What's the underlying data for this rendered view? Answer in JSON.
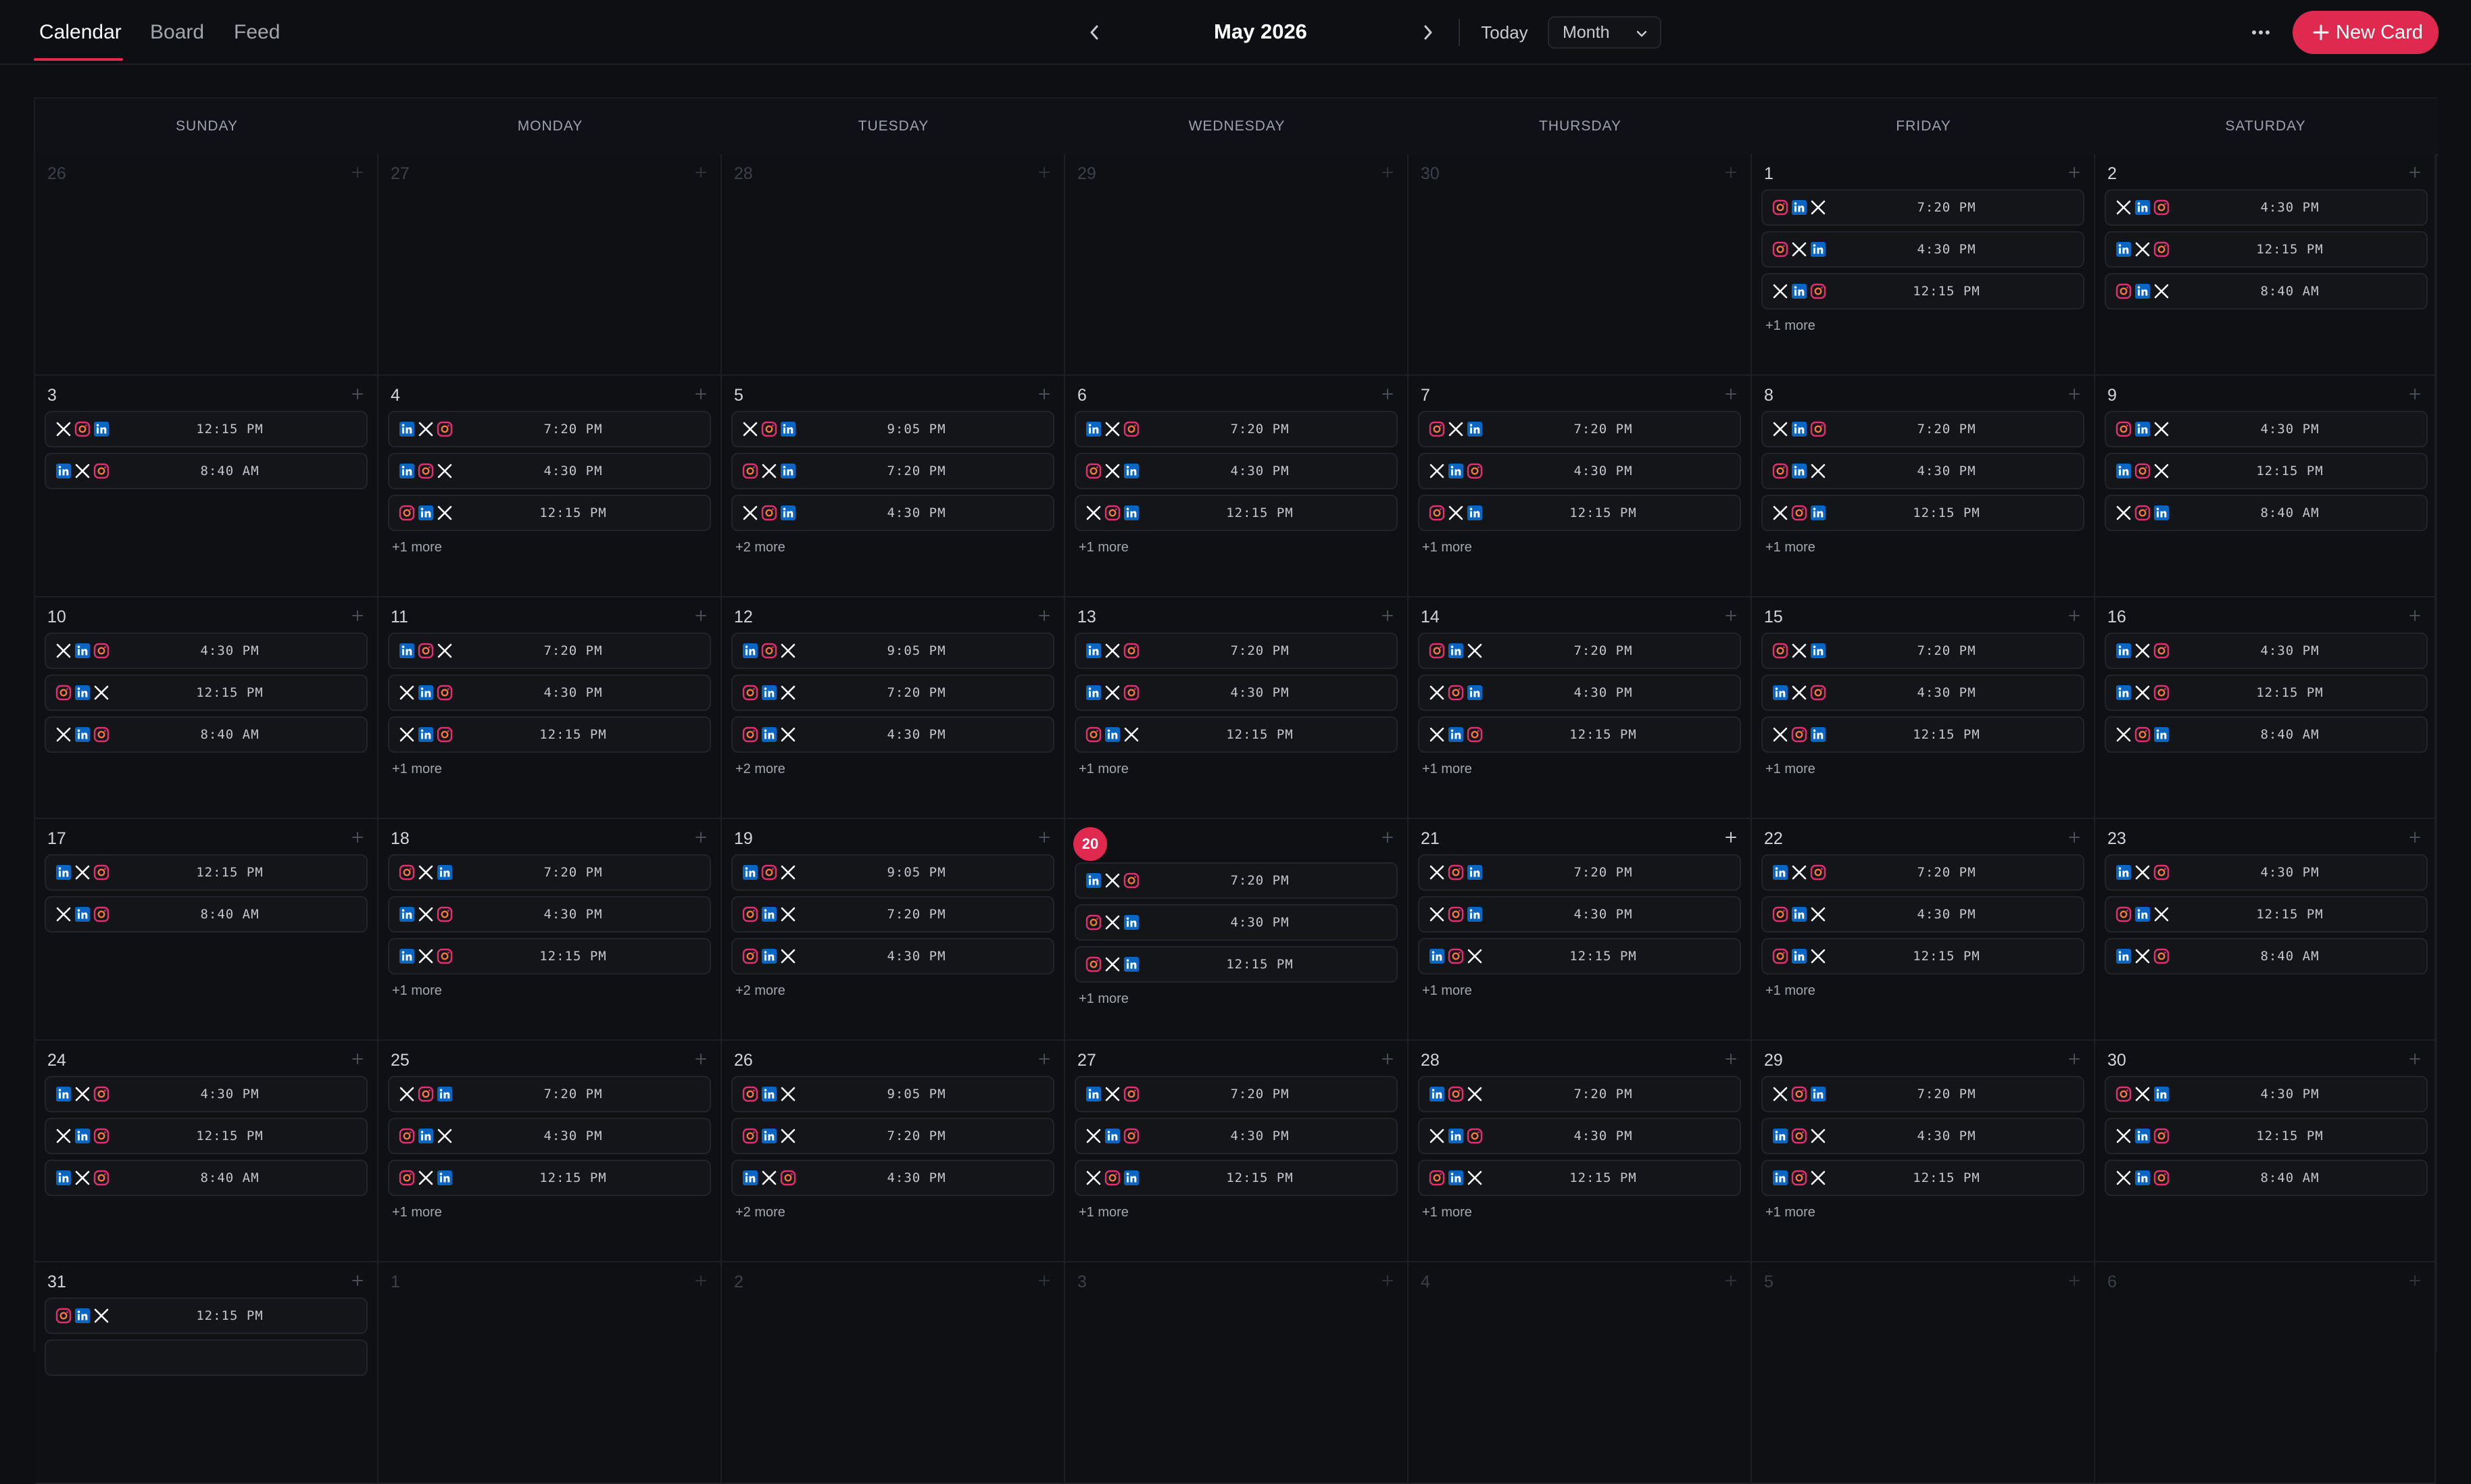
{
  "header": {
    "tabs": [
      "Calendar",
      "Board",
      "Feed"
    ],
    "active_tab": 0,
    "month_title": "May 2026",
    "today_label": "Today",
    "view_label": "Month",
    "new_card_label": "New Card"
  },
  "colors": {
    "accent": "#e0294f",
    "linkedin": "#0a66c2",
    "instagram": "#e1306c",
    "x": "#ffffff"
  },
  "weekdays": [
    "SUNDAY",
    "MONDAY",
    "TUESDAY",
    "WEDNESDAY",
    "THURSDAY",
    "FRIDAY",
    "SATURDAY"
  ],
  "today": 20,
  "weeks": [
    [
      {
        "d": "26",
        "out": true,
        "posts": []
      },
      {
        "d": "27",
        "out": true,
        "posts": []
      },
      {
        "d": "28",
        "out": true,
        "posts": []
      },
      {
        "d": "29",
        "out": true,
        "posts": []
      },
      {
        "d": "30",
        "out": true,
        "posts": []
      },
      {
        "d": "1",
        "posts": [
          {
            "i": "ilx",
            "t": "7:20 PM"
          },
          {
            "i": "ixl",
            "t": "4:30 PM"
          },
          {
            "i": "xli",
            "t": "12:15 PM"
          }
        ],
        "more": "+1 more"
      },
      {
        "d": "2",
        "posts": [
          {
            "i": "xli",
            "t": "4:30 PM"
          },
          {
            "i": "lxi",
            "t": "12:15 PM"
          },
          {
            "i": "ilx",
            "t": "8:40 AM"
          }
        ]
      }
    ],
    [
      {
        "d": "3",
        "posts": [
          {
            "i": "xil",
            "t": "12:15 PM"
          },
          {
            "i": "lxi",
            "t": "8:40 AM"
          }
        ]
      },
      {
        "d": "4",
        "posts": [
          {
            "i": "lxi",
            "t": "7:20 PM"
          },
          {
            "i": "lix",
            "t": "4:30 PM"
          },
          {
            "i": "ilx",
            "t": "12:15 PM"
          }
        ],
        "more": "+1 more"
      },
      {
        "d": "5",
        "posts": [
          {
            "i": "xil",
            "t": "9:05 PM"
          },
          {
            "i": "ixl",
            "t": "7:20 PM"
          },
          {
            "i": "xil",
            "t": "4:30 PM"
          }
        ],
        "more": "+2 more"
      },
      {
        "d": "6",
        "posts": [
          {
            "i": "lxi",
            "t": "7:20 PM"
          },
          {
            "i": "ixl",
            "t": "4:30 PM"
          },
          {
            "i": "xil",
            "t": "12:15 PM"
          }
        ],
        "more": "+1 more"
      },
      {
        "d": "7",
        "posts": [
          {
            "i": "ixl",
            "t": "7:20 PM"
          },
          {
            "i": "xli",
            "t": "4:30 PM"
          },
          {
            "i": "ixl",
            "t": "12:15 PM"
          }
        ],
        "more": "+1 more"
      },
      {
        "d": "8",
        "posts": [
          {
            "i": "xli",
            "t": "7:20 PM"
          },
          {
            "i": "ilx",
            "t": "4:30 PM"
          },
          {
            "i": "xil",
            "t": "12:15 PM"
          }
        ],
        "more": "+1 more"
      },
      {
        "d": "9",
        "posts": [
          {
            "i": "ilx",
            "t": "4:30 PM"
          },
          {
            "i": "lix",
            "t": "12:15 PM"
          },
          {
            "i": "xil",
            "t": "8:40 AM"
          }
        ]
      }
    ],
    [
      {
        "d": "10",
        "posts": [
          {
            "i": "xli",
            "t": "4:30 PM"
          },
          {
            "i": "ilx",
            "t": "12:15 PM"
          },
          {
            "i": "xli",
            "t": "8:40 AM"
          }
        ]
      },
      {
        "d": "11",
        "posts": [
          {
            "i": "lix",
            "t": "7:20 PM"
          },
          {
            "i": "xli",
            "t": "4:30 PM"
          },
          {
            "i": "xli",
            "t": "12:15 PM"
          }
        ],
        "more": "+1 more"
      },
      {
        "d": "12",
        "posts": [
          {
            "i": "lix",
            "t": "9:05 PM"
          },
          {
            "i": "ilx",
            "t": "7:20 PM"
          },
          {
            "i": "ilx",
            "t": "4:30 PM"
          }
        ],
        "more": "+2 more"
      },
      {
        "d": "13",
        "posts": [
          {
            "i": "lxi",
            "t": "7:20 PM"
          },
          {
            "i": "lxi",
            "t": "4:30 PM"
          },
          {
            "i": "ilx",
            "t": "12:15 PM"
          }
        ],
        "more": "+1 more"
      },
      {
        "d": "14",
        "posts": [
          {
            "i": "ilx",
            "t": "7:20 PM"
          },
          {
            "i": "xil",
            "t": "4:30 PM"
          },
          {
            "i": "xli",
            "t": "12:15 PM"
          }
        ],
        "more": "+1 more"
      },
      {
        "d": "15",
        "posts": [
          {
            "i": "ixl",
            "t": "7:20 PM"
          },
          {
            "i": "lxi",
            "t": "4:30 PM"
          },
          {
            "i": "xil",
            "t": "12:15 PM"
          }
        ],
        "more": "+1 more"
      },
      {
        "d": "16",
        "posts": [
          {
            "i": "lxi",
            "t": "4:30 PM"
          },
          {
            "i": "lxi",
            "t": "12:15 PM"
          },
          {
            "i": "xil",
            "t": "8:40 AM"
          }
        ]
      }
    ],
    [
      {
        "d": "17",
        "posts": [
          {
            "i": "lxi",
            "t": "12:15 PM"
          },
          {
            "i": "xli",
            "t": "8:40 AM"
          }
        ]
      },
      {
        "d": "18",
        "posts": [
          {
            "i": "ixl",
            "t": "7:20 PM"
          },
          {
            "i": "lxi",
            "t": "4:30 PM"
          },
          {
            "i": "lxi",
            "t": "12:15 PM"
          }
        ],
        "more": "+1 more"
      },
      {
        "d": "19",
        "posts": [
          {
            "i": "lix",
            "t": "9:05 PM"
          },
          {
            "i": "ilx",
            "t": "7:20 PM"
          },
          {
            "i": "ilx",
            "t": "4:30 PM"
          }
        ],
        "more": "+2 more"
      },
      {
        "d": "20",
        "posts": [
          {
            "i": "lxi",
            "t": "7:20 PM"
          },
          {
            "i": "ixl",
            "t": "4:30 PM"
          },
          {
            "i": "ixl",
            "t": "12:15 PM"
          }
        ],
        "more": "+1 more"
      },
      {
        "d": "21",
        "posts": [
          {
            "i": "xil",
            "t": "7:20 PM"
          },
          {
            "i": "xil",
            "t": "4:30 PM"
          },
          {
            "i": "lix",
            "t": "12:15 PM"
          }
        ],
        "more": "+1 more"
      },
      {
        "d": "22",
        "posts": [
          {
            "i": "lxi",
            "t": "7:20 PM"
          },
          {
            "i": "ilx",
            "t": "4:30 PM"
          },
          {
            "i": "ilx",
            "t": "12:15 PM"
          }
        ],
        "more": "+1 more"
      },
      {
        "d": "23",
        "posts": [
          {
            "i": "lxi",
            "t": "4:30 PM"
          },
          {
            "i": "ilx",
            "t": "12:15 PM"
          },
          {
            "i": "lxi",
            "t": "8:40 AM"
          }
        ]
      }
    ],
    [
      {
        "d": "24",
        "posts": [
          {
            "i": "lxi",
            "t": "4:30 PM"
          },
          {
            "i": "xli",
            "t": "12:15 PM"
          },
          {
            "i": "lxi",
            "t": "8:40 AM"
          }
        ]
      },
      {
        "d": "25",
        "posts": [
          {
            "i": "xil",
            "t": "7:20 PM"
          },
          {
            "i": "ilx",
            "t": "4:30 PM"
          },
          {
            "i": "ixl",
            "t": "12:15 PM"
          }
        ],
        "more": "+1 more"
      },
      {
        "d": "26",
        "posts": [
          {
            "i": "ilx",
            "t": "9:05 PM"
          },
          {
            "i": "ilx",
            "t": "7:20 PM"
          },
          {
            "i": "lxi",
            "t": "4:30 PM"
          }
        ],
        "more": "+2 more"
      },
      {
        "d": "27",
        "posts": [
          {
            "i": "lxi",
            "t": "7:20 PM"
          },
          {
            "i": "xli",
            "t": "4:30 PM"
          },
          {
            "i": "xil",
            "t": "12:15 PM"
          }
        ],
        "more": "+1 more"
      },
      {
        "d": "28",
        "posts": [
          {
            "i": "lix",
            "t": "7:20 PM"
          },
          {
            "i": "xli",
            "t": "4:30 PM"
          },
          {
            "i": "ilx",
            "t": "12:15 PM"
          }
        ],
        "more": "+1 more"
      },
      {
        "d": "29",
        "posts": [
          {
            "i": "xil",
            "t": "7:20 PM"
          },
          {
            "i": "lix",
            "t": "4:30 PM"
          },
          {
            "i": "lix",
            "t": "12:15 PM"
          }
        ],
        "more": "+1 more"
      },
      {
        "d": "30",
        "posts": [
          {
            "i": "ixl",
            "t": "4:30 PM"
          },
          {
            "i": "xli",
            "t": "12:15 PM"
          },
          {
            "i": "xli",
            "t": "8:40 AM"
          }
        ]
      }
    ],
    [
      {
        "d": "31",
        "posts": [
          {
            "i": "ilx",
            "t": "12:15 PM"
          },
          {
            "i": "",
            "t": ""
          }
        ]
      },
      {
        "d": "1",
        "out": true,
        "posts": []
      },
      {
        "d": "2",
        "out": true,
        "posts": []
      },
      {
        "d": "3",
        "out": true,
        "posts": []
      },
      {
        "d": "4",
        "out": true,
        "posts": []
      },
      {
        "d": "5",
        "out": true,
        "posts": []
      },
      {
        "d": "6",
        "out": true,
        "posts": []
      }
    ]
  ]
}
